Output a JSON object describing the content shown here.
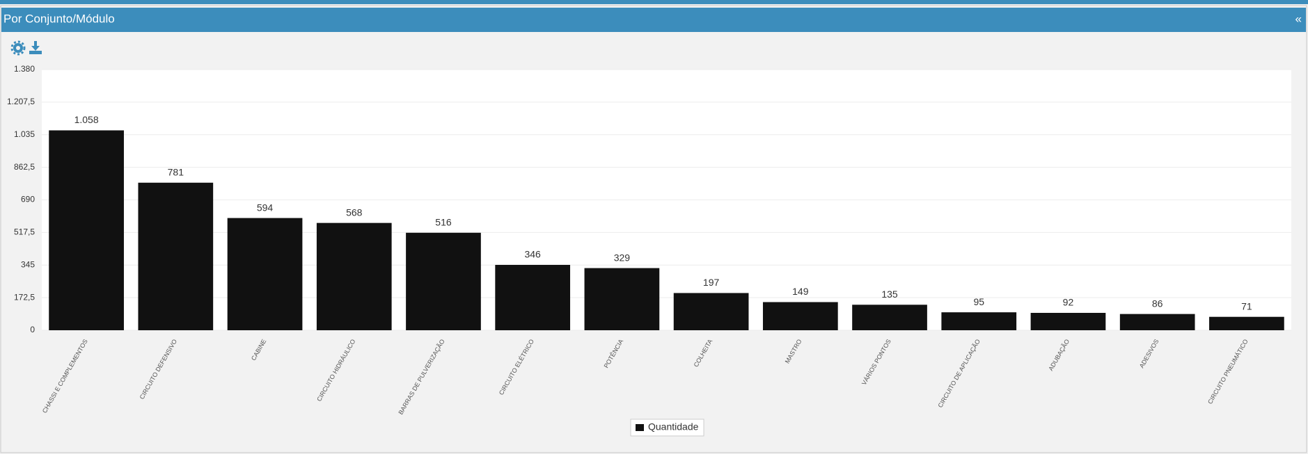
{
  "header": {
    "title": "Por Conjunto/Módulo",
    "collapse": "«"
  },
  "chart_data": {
    "type": "bar",
    "categories": [
      "CHASSI E COMPLEMENTOS",
      "CIRCUITO DEFENSIVO",
      "CABINE",
      "CIRCUITO HIDRÁULICO",
      "BARRAS DE PULVERIZAÇÃO",
      "CIRCUITO ELÉTRICO",
      "POTÊNCIA",
      "COLHEITA",
      "MASTRO",
      "VÁRIOS PONTOS",
      "CIRCUITO DE APLICAÇÃO",
      "ADUBAÇÃO",
      "ADESIVOS",
      "CIRCUITO PNEUMÁTICO"
    ],
    "series": [
      {
        "name": "Quantidade",
        "color": "#111111",
        "values": [
          1058,
          781,
          594,
          568,
          516,
          346,
          329,
          197,
          149,
          135,
          95,
          92,
          86,
          71
        ],
        "value_labels": [
          "1.058",
          "781",
          "594",
          "568",
          "516",
          "346",
          "329",
          "197",
          "149",
          "135",
          "95",
          "92",
          "86",
          "71"
        ]
      }
    ],
    "ylim": [
      0,
      1380
    ],
    "yticks": [
      0,
      {
        "value": 172.5,
        "label": "172,5"
      },
      345,
      {
        "value": 517.5,
        "label": "517,5"
      },
      690,
      {
        "value": 862.5,
        "label": "862,5"
      },
      {
        "value": 1035,
        "label": "1.035"
      },
      {
        "value": 1207.5,
        "label": "1.207,5"
      },
      {
        "value": 1380,
        "label": "1.380"
      }
    ],
    "grid": true,
    "legend": "bottom"
  }
}
